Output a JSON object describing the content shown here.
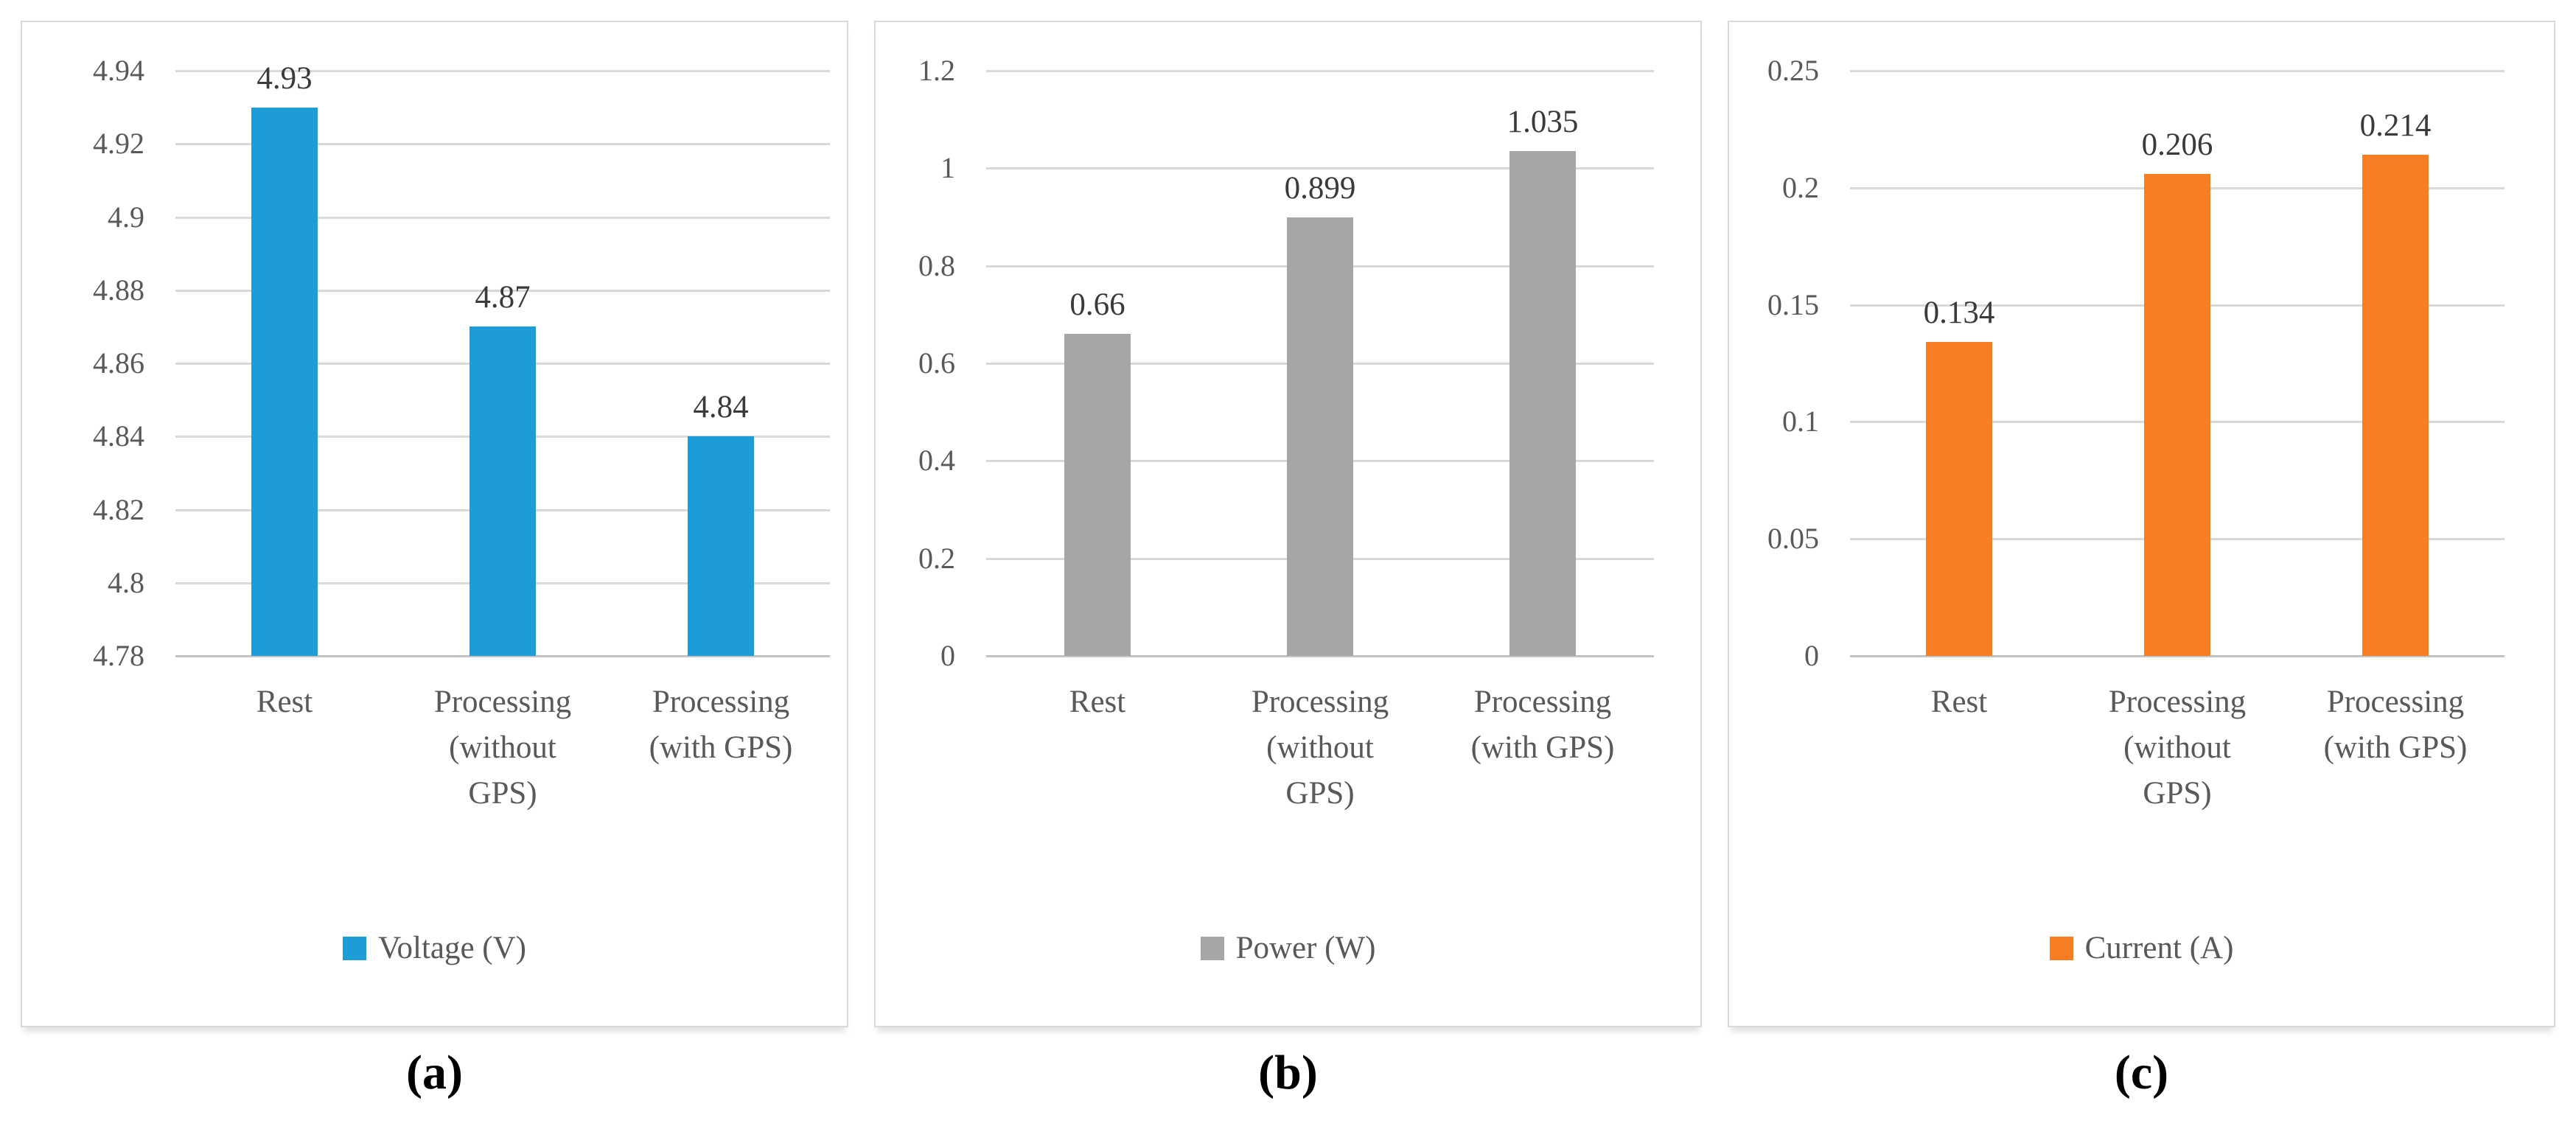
{
  "page": {
    "background": "#FFFFFF"
  },
  "figure": {
    "panels": [
      {
        "caption": "(a)"
      },
      {
        "caption": "(b)"
      },
      {
        "caption": "(c)"
      }
    ]
  },
  "colors": {
    "bar_blue": "#1E9CD8",
    "bar_gray": "#A6A6A6",
    "bar_orange": "#F87E23",
    "gridline": "#D9D9D9",
    "axis_baseline": "#C3C3C3",
    "tick_text": "#595959",
    "data_label_text": "#3A3A3A",
    "panel_border": "#D9D9D9",
    "caption_text": "#000000"
  },
  "chart_data": [
    {
      "type": "bar",
      "title": "",
      "xlabel": "",
      "ylabel": "",
      "categories": [
        "Rest",
        "Processing (without GPS)",
        "Processing (with GPS)"
      ],
      "category_display_lines": [
        [
          "Rest"
        ],
        [
          "Processing",
          "(without",
          "GPS)"
        ],
        [
          "Processing",
          "(with GPS)"
        ]
      ],
      "values": [
        4.93,
        4.87,
        4.84
      ],
      "data_labels": [
        "4.93",
        "4.87",
        "4.84"
      ],
      "series_name": "Voltage (V)",
      "bar_color": "#1E9CD8",
      "ylim": [
        4.78,
        4.94
      ],
      "ytick_values": [
        4.94,
        4.92,
        4.9,
        4.88,
        4.86,
        4.84,
        4.82,
        4.8,
        4.78
      ],
      "ytick_labels": [
        "4.94",
        "4.92",
        "4.9",
        "4.88",
        "4.86",
        "4.84",
        "4.82",
        "4.8",
        "4.78"
      ],
      "grid": true,
      "legend_position": "bottom"
    },
    {
      "type": "bar",
      "title": "",
      "xlabel": "",
      "ylabel": "",
      "categories": [
        "Rest",
        "Processing (without GPS)",
        "Processing (with GPS)"
      ],
      "category_display_lines": [
        [
          "Rest"
        ],
        [
          "Processing",
          "(without",
          "GPS)"
        ],
        [
          "Processing",
          "(with GPS)"
        ]
      ],
      "values": [
        0.66,
        0.899,
        1.035
      ],
      "data_labels": [
        "0.66",
        "0.899",
        "1.035"
      ],
      "series_name": "Power (W)",
      "bar_color": "#A6A6A6",
      "ylim": [
        0,
        1.2
      ],
      "ytick_values": [
        1.2,
        1,
        0.8,
        0.6,
        0.4,
        0.2,
        0
      ],
      "ytick_labels": [
        "1.2",
        "1",
        "0.8",
        "0.6",
        "0.4",
        "0.2",
        "0"
      ],
      "grid": true,
      "legend_position": "bottom"
    },
    {
      "type": "bar",
      "title": "",
      "xlabel": "",
      "ylabel": "",
      "categories": [
        "Rest",
        "Processing (without GPS)",
        "Processing (with GPS)"
      ],
      "category_display_lines": [
        [
          "Rest"
        ],
        [
          "Processing",
          "(without",
          "GPS)"
        ],
        [
          "Processing",
          "(with GPS)"
        ]
      ],
      "values": [
        0.134,
        0.206,
        0.214
      ],
      "data_labels": [
        "0.134",
        "0.206",
        "0.214"
      ],
      "series_name": "Current (A)",
      "bar_color": "#F87E23",
      "ylim": [
        0,
        0.25
      ],
      "ytick_values": [
        0.25,
        0.2,
        0.15,
        0.1,
        0.05,
        0
      ],
      "ytick_labels": [
        "0.25",
        "0.2",
        "0.15",
        "0.1",
        "0.05",
        "0"
      ],
      "grid": true,
      "legend_position": "bottom"
    }
  ]
}
